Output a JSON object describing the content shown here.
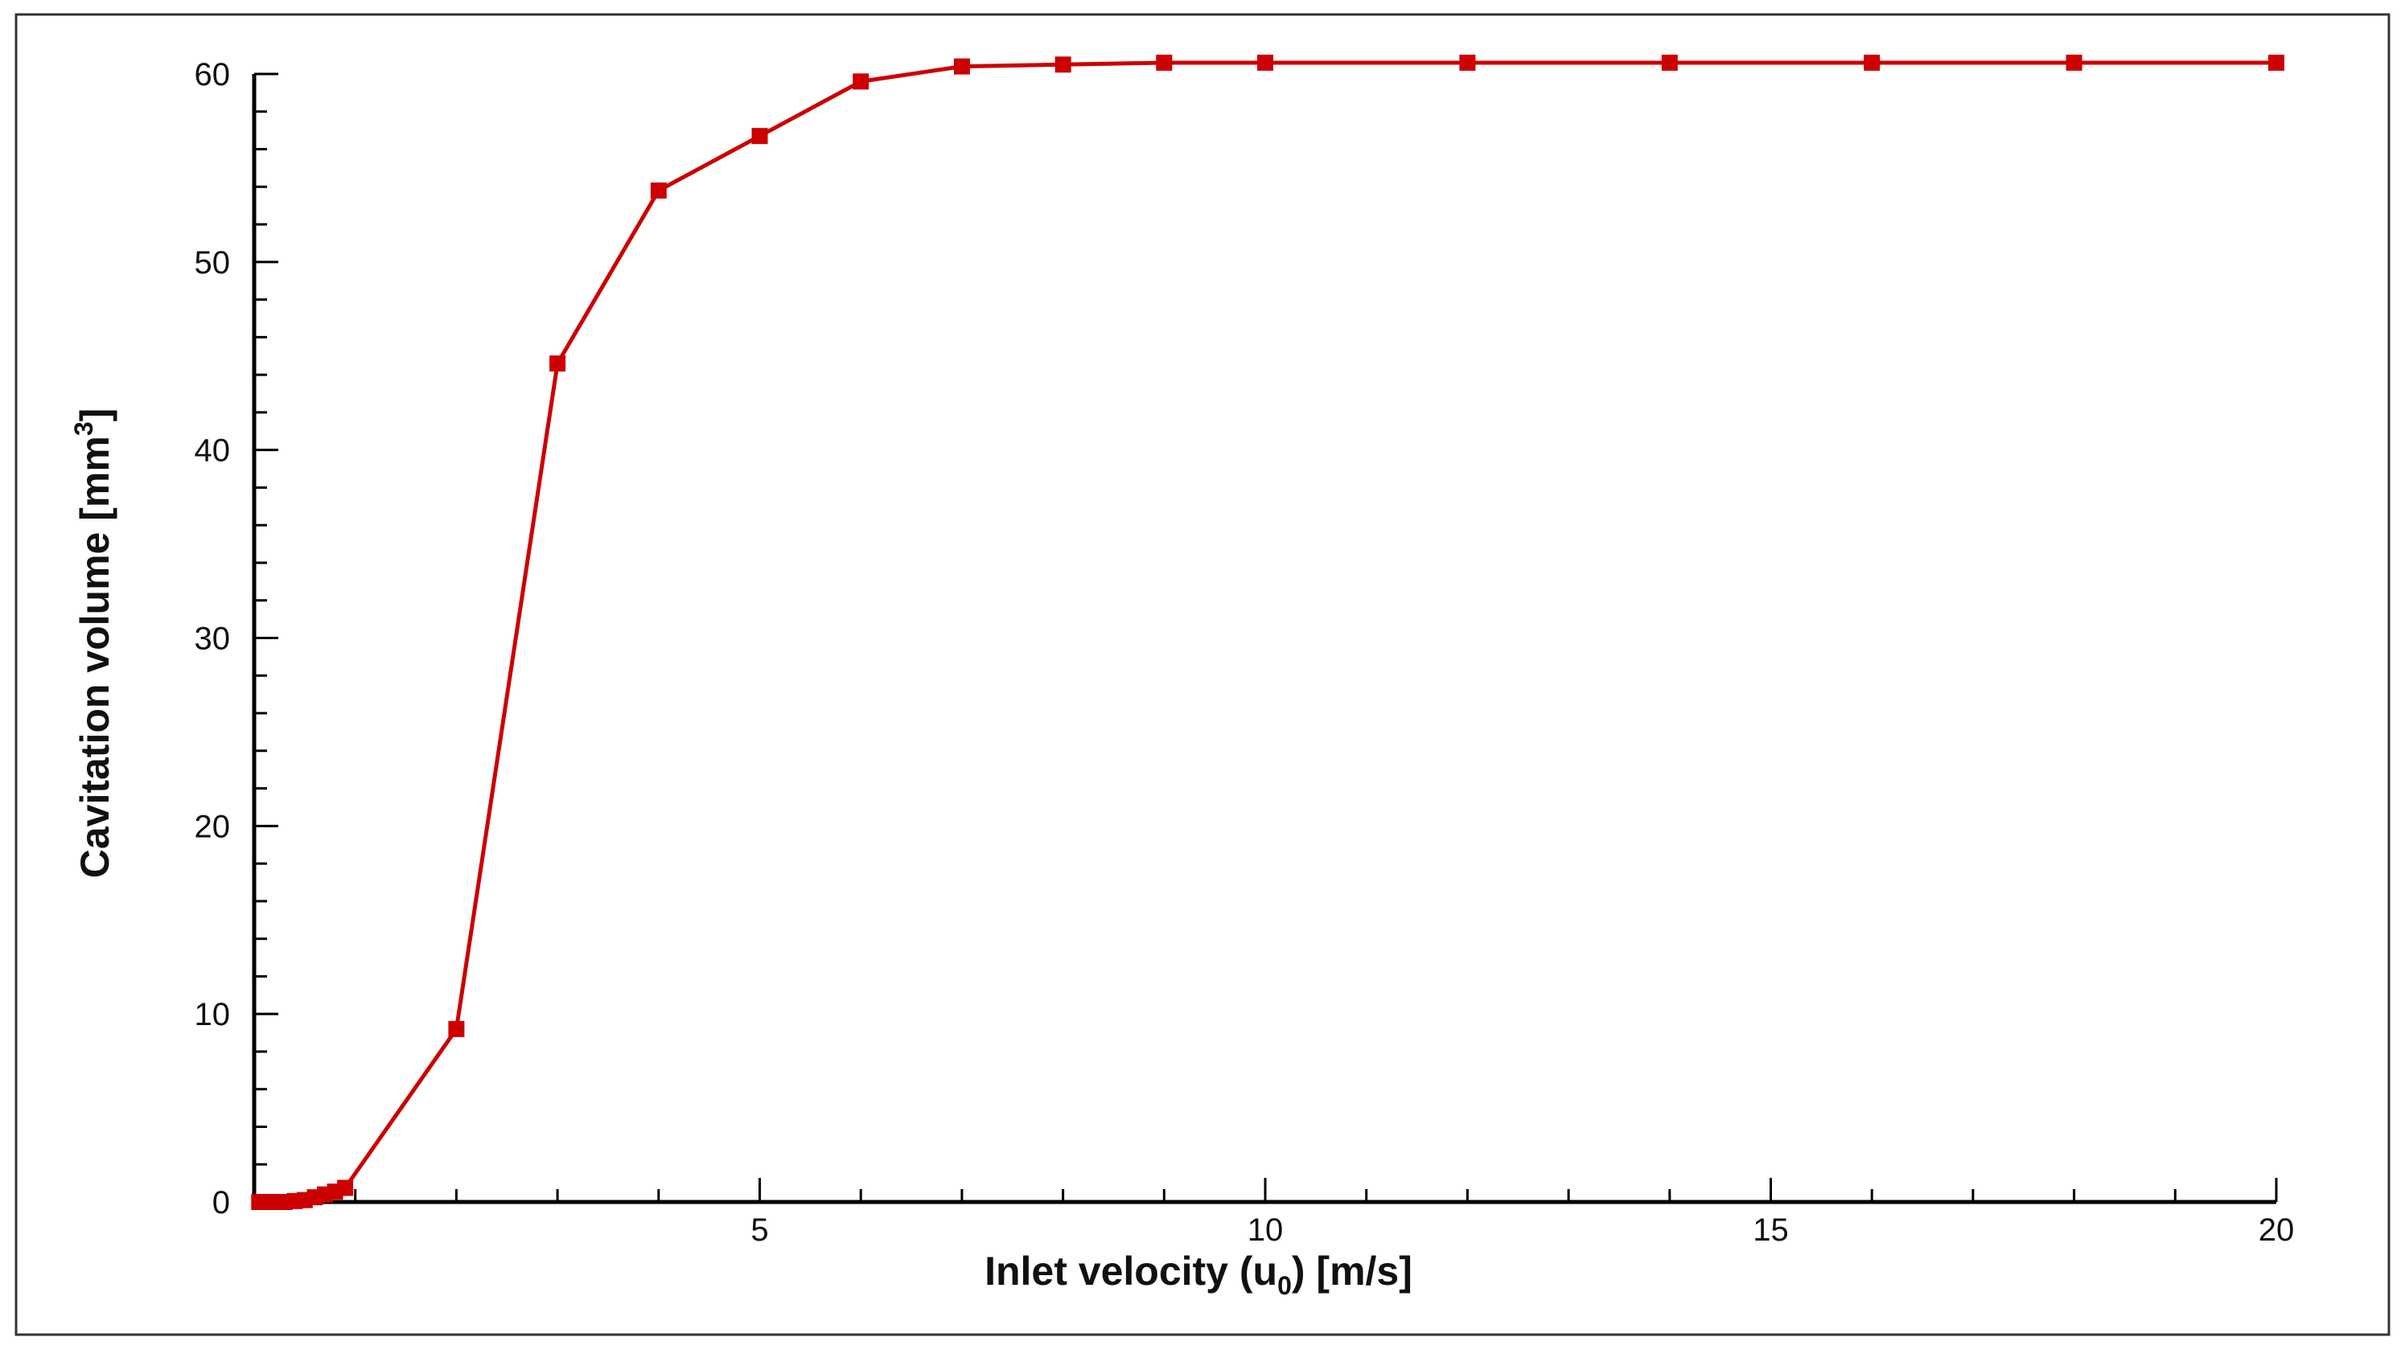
{
  "chart_data": {
    "type": "line",
    "xlabel": {
      "before": "Inlet velocity (u",
      "sub": "0",
      "after": ") [m/s]"
    },
    "ylabel": {
      "before": "Cavitation volume [mm",
      "sup": "3",
      "after": "]"
    },
    "xlim": [
      0,
      20
    ],
    "ylim": [
      0,
      60
    ],
    "x_ticks": [
      5,
      10,
      15,
      20
    ],
    "x_tick_labels": [
      "5",
      "10",
      "15",
      "20"
    ],
    "x_minor_step": 1,
    "y_ticks": [
      0,
      10,
      20,
      30,
      40,
      50,
      60
    ],
    "y_tick_labels": [
      "0",
      "10",
      "20",
      "30",
      "40",
      "50",
      "60"
    ],
    "y_minor_step": 2,
    "grid": false,
    "colors": {
      "series": "#cc0000",
      "axis": "#000000",
      "frame": "#333333"
    },
    "series": [
      {
        "marker": "square",
        "x": [
          0.05,
          0.1,
          0.2,
          0.3,
          0.4,
          0.5,
          0.6,
          0.7,
          0.8,
          0.9,
          2,
          3,
          4,
          5,
          6,
          7,
          8,
          9,
          10,
          12,
          14,
          16,
          18,
          20
        ],
        "y": [
          0,
          0,
          0,
          0,
          0.05,
          0.1,
          0.25,
          0.4,
          0.55,
          0.75,
          9.2,
          44.6,
          53.8,
          56.7,
          59.6,
          60.4,
          60.5,
          60.6,
          60.6,
          60.6,
          60.6,
          60.6,
          60.6,
          60.6
        ]
      }
    ]
  }
}
